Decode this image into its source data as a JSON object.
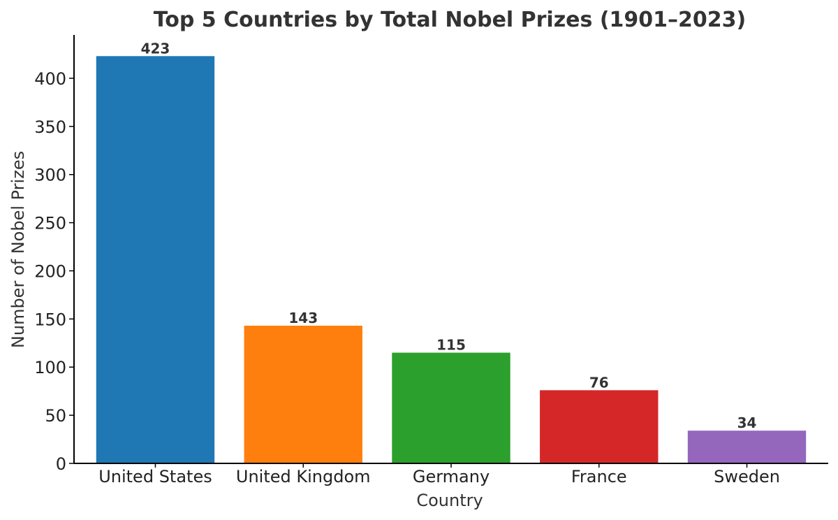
{
  "chart_data": {
    "type": "bar",
    "title": "Top 5 Countries by Total Nobel Prizes (1901–2023)",
    "xlabel": "Country",
    "ylabel": "Number of Nobel Prizes",
    "categories": [
      "United States",
      "United Kingdom",
      "Germany",
      "France",
      "Sweden"
    ],
    "values": [
      423,
      143,
      115,
      76,
      34
    ],
    "data_labels": [
      "423",
      "143",
      "115",
      "76",
      "34"
    ],
    "colors": [
      "#1f77b4",
      "#ff7f0e",
      "#2ca02c",
      "#d62728",
      "#9467bd"
    ],
    "ylim": [
      0,
      445
    ],
    "yticks": [
      0,
      50,
      100,
      150,
      200,
      250,
      300,
      350,
      400
    ],
    "grid": false,
    "legend": "none"
  }
}
